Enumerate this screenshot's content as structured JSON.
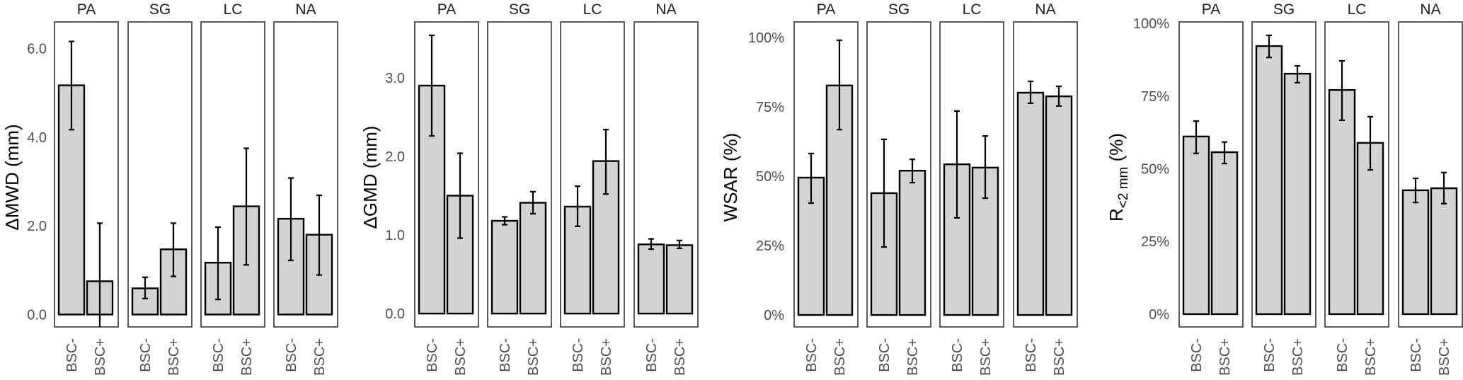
{
  "chart_data": [
    {
      "type": "bar",
      "title": "",
      "ylabel": "ΔMWD (mm)",
      "ylabel_main": "ΔMWD (mm)",
      "ylim": [
        -0.28,
        6.6
      ],
      "yticks": [
        0,
        2,
        4,
        6
      ],
      "ytick_labels": [
        "0.0",
        "2.0",
        "4.0",
        "6.0"
      ],
      "facets": [
        "PA",
        "SG",
        "LC",
        "NA"
      ],
      "categories": [
        "BSC-",
        "BSC+"
      ],
      "grid": false,
      "error_bars": true,
      "bar_color": "#d3d3d3",
      "series": [
        {
          "facet": "PA",
          "values": [
            5.17,
            0.75
          ],
          "lower": [
            4.17,
            -0.56
          ],
          "upper": [
            6.16,
            2.06
          ]
        },
        {
          "facet": "SG",
          "values": [
            0.59,
            1.47
          ],
          "lower": [
            0.36,
            0.86
          ],
          "upper": [
            0.84,
            2.06
          ]
        },
        {
          "facet": "LC",
          "values": [
            1.17,
            2.44
          ],
          "lower": [
            0.34,
            1.12
          ],
          "upper": [
            1.97,
            3.75
          ]
        },
        {
          "facet": "NA",
          "values": [
            2.16,
            1.8
          ],
          "lower": [
            1.22,
            0.89
          ],
          "upper": [
            3.08,
            2.69
          ]
        }
      ]
    },
    {
      "type": "bar",
      "title": "",
      "ylabel": "ΔGMD (mm)",
      "ylabel_main": "ΔGMD (mm)",
      "ylim": [
        -0.17,
        3.71
      ],
      "yticks": [
        0,
        1,
        2,
        3
      ],
      "ytick_labels": [
        "0.0",
        "1.0",
        "2.0",
        "3.0"
      ],
      "facets": [
        "PA",
        "SG",
        "LC",
        "NA"
      ],
      "categories": [
        "BSC-",
        "BSC+"
      ],
      "grid": false,
      "error_bars": true,
      "bar_color": "#d3d3d3",
      "series": [
        {
          "facet": "PA",
          "values": [
            2.9,
            1.5
          ],
          "lower": [
            2.26,
            0.96
          ],
          "upper": [
            3.54,
            2.04
          ]
        },
        {
          "facet": "SG",
          "values": [
            1.18,
            1.41
          ],
          "lower": [
            1.13,
            1.27
          ],
          "upper": [
            1.23,
            1.55
          ]
        },
        {
          "facet": "LC",
          "values": [
            1.36,
            1.94
          ],
          "lower": [
            1.11,
            1.52
          ],
          "upper": [
            1.62,
            2.34
          ]
        },
        {
          "facet": "NA",
          "values": [
            0.88,
            0.87
          ],
          "lower": [
            0.82,
            0.83
          ],
          "upper": [
            0.95,
            0.93
          ]
        }
      ]
    },
    {
      "type": "bar",
      "title": "",
      "ylabel": "WSAR (%)",
      "ylabel_main": "WSAR (%)",
      "ylim": [
        -4.3,
        105.6
      ],
      "yticks": [
        0,
        25,
        50,
        75,
        100
      ],
      "ytick_labels": [
        "0%",
        "25%",
        "50%",
        "75%",
        "100%"
      ],
      "facets": [
        "PA",
        "SG",
        "LC",
        "NA"
      ],
      "categories": [
        "BSC-",
        "BSC+"
      ],
      "grid": false,
      "error_bars": true,
      "bar_color": "#d3d3d3",
      "series": [
        {
          "facet": "PA",
          "values": [
            49.5,
            82.7
          ],
          "lower": [
            40.3,
            66.8
          ],
          "upper": [
            58.2,
            99.0
          ]
        },
        {
          "facet": "SG",
          "values": [
            43.9,
            52.0
          ],
          "lower": [
            24.5,
            47.7
          ],
          "upper": [
            63.3,
            56.1
          ]
        },
        {
          "facet": "LC",
          "values": [
            54.3,
            53.1
          ],
          "lower": [
            35.0,
            42.1
          ],
          "upper": [
            73.5,
            64.5
          ]
        },
        {
          "facet": "NA",
          "values": [
            80.1,
            78.8
          ],
          "lower": [
            76.3,
            75.3
          ],
          "upper": [
            84.2,
            82.4
          ]
        }
      ]
    },
    {
      "type": "bar",
      "title": "",
      "ylabel": "R<2 mm (%)",
      "ylabel_main": "R",
      "ylabel_sub": "<2 mm",
      "ylabel_suffix": " (%)",
      "ylim": [
        -4.4,
        100.5
      ],
      "yticks": [
        0,
        25,
        50,
        75,
        100
      ],
      "ytick_labels": [
        "0%",
        "25%",
        "50%",
        "75%",
        "100%"
      ],
      "facets": [
        "PA",
        "SG",
        "LC",
        "NA"
      ],
      "categories": [
        "BSC-",
        "BSC+"
      ],
      "grid": false,
      "error_bars": true,
      "bar_color": "#d3d3d3",
      "series": [
        {
          "facet": "PA",
          "values": [
            61.1,
            55.7
          ],
          "lower": [
            55.3,
            51.8
          ],
          "upper": [
            66.4,
            59.2
          ]
        },
        {
          "facet": "SG",
          "values": [
            92.2,
            82.7
          ],
          "lower": [
            88.3,
            79.6
          ],
          "upper": [
            95.9,
            85.4
          ]
        },
        {
          "facet": "LC",
          "values": [
            77.1,
            58.9
          ],
          "lower": [
            66.7,
            49.6
          ],
          "upper": [
            87.1,
            67.9
          ]
        },
        {
          "facet": "NA",
          "values": [
            42.6,
            43.3
          ],
          "lower": [
            38.4,
            38.0
          ],
          "upper": [
            46.7,
            48.7
          ]
        }
      ]
    }
  ]
}
